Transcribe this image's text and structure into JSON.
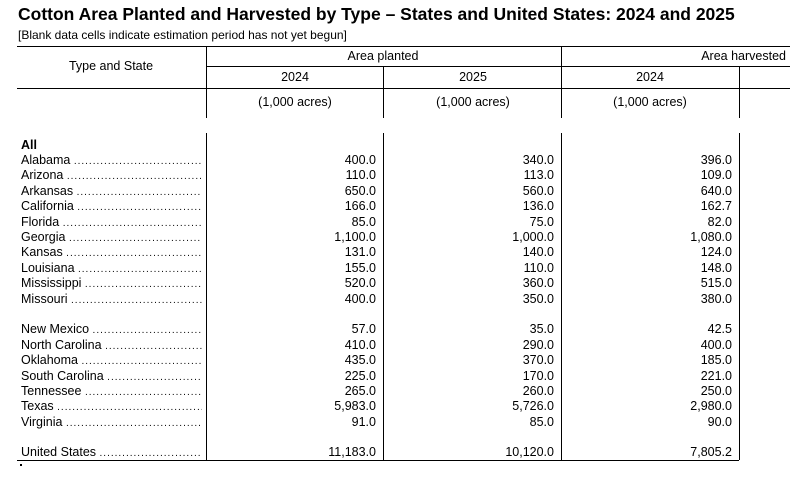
{
  "title": "Cotton Area Planted and Harvested by Type – States and United States: 2024 and 2025",
  "subtitle": "[Blank data cells indicate estimation period has not yet begun]",
  "header": {
    "stub": "Type and State",
    "planted": "Area planted",
    "harvested": "Area harvested",
    "years": [
      "2024",
      "2025",
      "2024"
    ],
    "units": [
      "(1,000 acres)",
      "(1,000 acres)",
      "(1,000 acres)"
    ]
  },
  "section_label": "All",
  "rows": [
    {
      "state": "Alabama",
      "p2024": "400.0",
      "p2025": "340.0",
      "h2024": "396.0"
    },
    {
      "state": "Arizona",
      "p2024": "110.0",
      "p2025": "113.0",
      "h2024": "109.0"
    },
    {
      "state": "Arkansas",
      "p2024": "650.0",
      "p2025": "560.0",
      "h2024": "640.0"
    },
    {
      "state": "California",
      "p2024": "166.0",
      "p2025": "136.0",
      "h2024": "162.7"
    },
    {
      "state": "Florida",
      "p2024": "85.0",
      "p2025": "75.0",
      "h2024": "82.0"
    },
    {
      "state": "Georgia",
      "p2024": "1,100.0",
      "p2025": "1,000.0",
      "h2024": "1,080.0"
    },
    {
      "state": "Kansas",
      "p2024": "131.0",
      "p2025": "140.0",
      "h2024": "124.0"
    },
    {
      "state": "Louisiana",
      "p2024": "155.0",
      "p2025": "110.0",
      "h2024": "148.0"
    },
    {
      "state": "Mississippi",
      "p2024": "520.0",
      "p2025": "360.0",
      "h2024": "515.0"
    },
    {
      "state": "Missouri",
      "p2024": "400.0",
      "p2025": "350.0",
      "h2024": "380.0"
    },
    {
      "state": "New Mexico",
      "p2024": "57.0",
      "p2025": "35.0",
      "h2024": "42.5"
    },
    {
      "state": "North Carolina",
      "p2024": "410.0",
      "p2025": "290.0",
      "h2024": "400.0"
    },
    {
      "state": "Oklahoma",
      "p2024": "435.0",
      "p2025": "370.0",
      "h2024": "185.0"
    },
    {
      "state": "South Carolina",
      "p2024": "225.0",
      "p2025": "170.0",
      "h2024": "221.0"
    },
    {
      "state": "Tennessee",
      "p2024": "265.0",
      "p2025": "260.0",
      "h2024": "250.0"
    },
    {
      "state": "Texas",
      "p2024": "5,983.0",
      "p2025": "5,726.0",
      "h2024": "2,980.0"
    },
    {
      "state": "Virginia",
      "p2024": "91.0",
      "p2025": "85.0",
      "h2024": "90.0"
    }
  ],
  "total": {
    "state": "United States",
    "p2024": "11,183.0",
    "p2025": "10,120.0",
    "h2024": "7,805.2"
  }
}
